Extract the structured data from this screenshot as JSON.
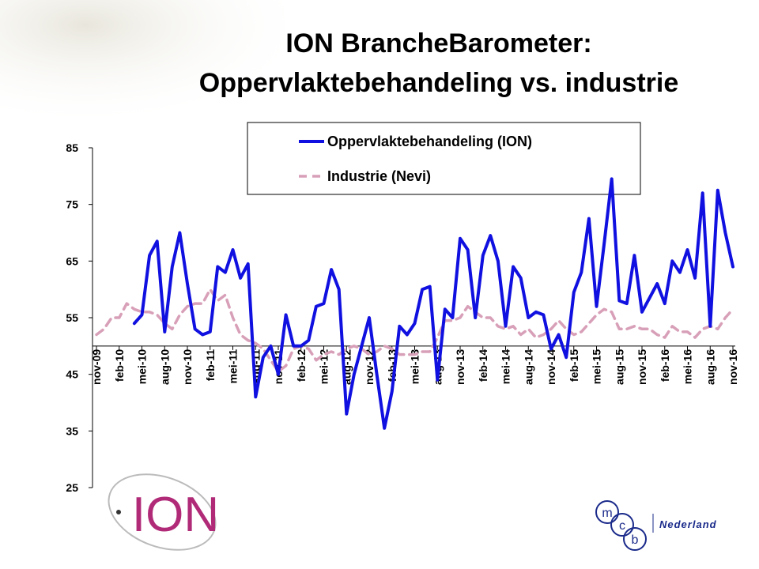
{
  "chart_data": {
    "type": "line",
    "title": [
      "ION BrancheBarometer:",
      "Oppervlaktebehandeling vs. industrie"
    ],
    "categories": [
      "nov-09",
      null,
      null,
      "feb-10",
      null,
      null,
      "mei-10",
      null,
      null,
      "aug-10",
      null,
      null,
      "nov-10",
      null,
      null,
      "feb-11",
      null,
      null,
      "mei-11",
      null,
      null,
      "aug-11",
      null,
      null,
      "nov-11",
      null,
      null,
      "feb-12",
      null,
      null,
      "mei-12",
      null,
      null,
      "aug-12",
      null,
      null,
      "nov-12",
      null,
      null,
      "feb-13",
      null,
      null,
      "mei-13",
      null,
      null,
      "aug-13",
      null,
      null,
      "nov-13",
      null,
      null,
      "feb-14",
      null,
      null,
      "mei-14",
      null,
      null,
      "aug-14",
      null,
      null,
      "nov-14",
      null,
      null,
      "feb-15",
      null,
      null,
      "mei-15",
      null,
      null,
      "aug-15",
      null,
      null,
      "nov-15",
      null,
      null,
      "feb-16",
      null,
      null,
      "mei-16",
      null,
      null,
      "aug-16",
      null,
      null,
      "nov-16"
    ],
    "series": [
      {
        "name": "Oppervlaktebehandeling (ION)",
        "color": "#1010e0",
        "dash": false,
        "values": [
          null,
          null,
          null,
          null,
          null,
          54,
          55.5,
          66,
          68.5,
          52.5,
          64,
          70,
          61,
          53,
          52,
          52.5,
          64,
          63,
          67,
          62,
          64.5,
          41,
          48,
          50,
          45,
          55.5,
          50,
          50,
          51,
          57,
          57.5,
          63.5,
          60,
          38,
          45,
          50,
          55,
          45,
          35.5,
          42,
          53.5,
          52,
          54,
          60,
          60.5,
          44,
          56.5,
          55,
          69,
          67,
          55,
          66,
          69.5,
          65,
          53.5,
          64,
          62,
          55,
          56,
          55.5,
          49.5,
          52,
          48,
          59.5,
          63,
          72.5,
          57,
          68,
          79.5,
          58,
          57.5,
          66,
          56,
          58.5,
          61,
          57.5,
          65,
          63,
          67,
          62,
          77,
          53.5,
          77.5,
          70,
          64
        ]
      },
      {
        "name": "Industrie (Nevi)",
        "color": "#d8a0b8",
        "dash": true,
        "values": [
          52,
          53,
          55,
          55,
          57.5,
          56.5,
          56,
          56,
          55.5,
          54,
          53,
          55.5,
          57,
          57.5,
          57.5,
          60,
          58,
          59,
          55,
          52,
          51,
          50.5,
          49.5,
          47.5,
          45.5,
          46.5,
          49.5,
          50,
          49.5,
          47.5,
          48.5,
          49,
          48.5,
          49.5,
          50,
          49.5,
          48.5,
          49,
          50,
          49.5,
          48.5,
          48.5,
          48.5,
          49,
          49,
          51.5,
          54.5,
          54.5,
          55,
          57,
          56,
          55,
          55,
          53.5,
          53,
          53.5,
          52,
          53,
          51.5,
          52,
          53,
          54.5,
          53,
          52,
          52.5,
          54,
          55.5,
          56.5,
          56,
          53,
          53,
          53.5,
          53,
          53,
          52,
          51.5,
          53.5,
          52.5,
          52.5,
          51.5,
          53,
          53.5,
          53,
          55,
          56.5
        ]
      }
    ],
    "ylim": [
      25,
      85
    ],
    "yticks": [
      25,
      35,
      45,
      55,
      65,
      75,
      85
    ],
    "x_axis_crosses": 50,
    "grid": false,
    "legend": "top"
  },
  "logos": {
    "ion": "ION",
    "mcb": [
      "m",
      "c",
      "b"
    ],
    "mcb_country": "Nederland"
  }
}
